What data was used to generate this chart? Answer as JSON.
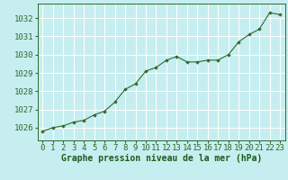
{
  "x": [
    0,
    1,
    2,
    3,
    4,
    5,
    6,
    7,
    8,
    9,
    10,
    11,
    12,
    13,
    14,
    15,
    16,
    17,
    18,
    19,
    20,
    21,
    22,
    23
  ],
  "y": [
    1025.8,
    1026.0,
    1026.1,
    1026.3,
    1026.4,
    1026.7,
    1026.9,
    1027.4,
    1028.1,
    1028.4,
    1029.1,
    1029.3,
    1029.7,
    1029.9,
    1029.6,
    1029.6,
    1029.7,
    1029.7,
    1030.0,
    1030.7,
    1031.1,
    1031.4,
    1032.3,
    1032.2
  ],
  "line_color": "#2d6a2d",
  "marker_color": "#2d6a2d",
  "bg_color": "#c6eef0",
  "grid_color": "#ffffff",
  "xlabel": "Graphe pression niveau de la mer (hPa)",
  "xlabel_color": "#1a5c1a",
  "yticks": [
    1026,
    1027,
    1028,
    1029,
    1030,
    1031,
    1032
  ],
  "ylim": [
    1025.3,
    1032.8
  ],
  "xlim": [
    -0.5,
    23.5
  ],
  "xtick_labels": [
    "0",
    "1",
    "2",
    "3",
    "4",
    "5",
    "6",
    "7",
    "8",
    "9",
    "10",
    "11",
    "12",
    "13",
    "14",
    "15",
    "16",
    "17",
    "18",
    "19",
    "20",
    "21",
    "22",
    "23"
  ],
  "tick_color": "#2d6a2d",
  "spine_color": "#2d6a2d",
  "tick_fontsize": 6.5,
  "label_fontsize": 7.0
}
